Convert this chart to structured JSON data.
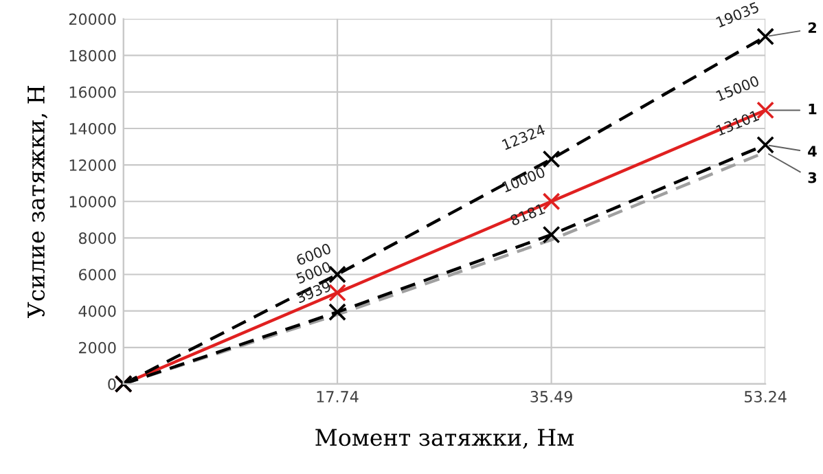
{
  "chart_data": {
    "type": "line",
    "xlabel": "Момент затяжки, Нм",
    "ylabel": "Усилие затяжки, Н",
    "x": [
      0,
      17.74,
      35.49,
      53.24
    ],
    "xlim": [
      0,
      53.24
    ],
    "xticks": [
      {
        "value": 0,
        "label": null
      },
      17.74,
      35.49,
      53.24
    ],
    "ylim": [
      0,
      20000
    ],
    "yticks": [
      0,
      2000,
      4000,
      6000,
      8000,
      10000,
      12000,
      14000,
      16000,
      18000,
      20000
    ],
    "grid": true,
    "series": [
      {
        "name": "1",
        "color": "#e02020",
        "line_style": "solid",
        "marker": "cross",
        "values": [
          0,
          5000,
          10000,
          15000
        ],
        "value_labels": [
          null,
          "5000",
          "10000",
          "15000"
        ]
      },
      {
        "name": "2",
        "color": "#000000",
        "line_style": "dashed",
        "marker": "cross",
        "values": [
          0,
          6000,
          12324,
          19035
        ],
        "value_labels": [
          null,
          "6000",
          "12324",
          "19035"
        ]
      },
      {
        "name": "3",
        "color": "#a0a0a0",
        "line_style": "dashed",
        "marker": "none",
        "values": [
          0,
          3800,
          7900,
          12700
        ]
      },
      {
        "name": "4",
        "color": "#000000",
        "line_style": "dashed",
        "marker": "cross",
        "values": [
          0,
          3939,
          8181,
          13101
        ],
        "value_labels": [
          null,
          "3939",
          "8181",
          "13101"
        ]
      }
    ]
  }
}
